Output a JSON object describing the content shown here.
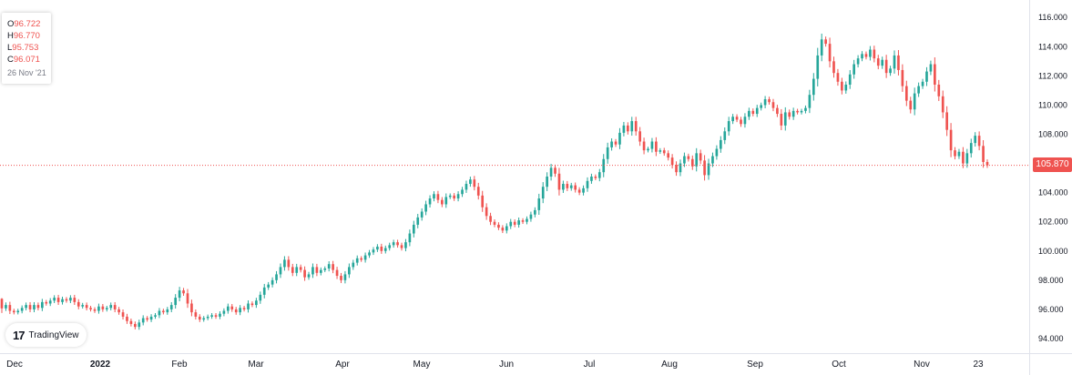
{
  "app": {
    "brand": "TradingView",
    "brand_icon": "tradingview-logo-icon"
  },
  "ohlc": {
    "open_key": "O",
    "open": "96.722",
    "high_key": "H",
    "high": "96.770",
    "low_key": "L",
    "low": "95.753",
    "close_key": "C",
    "close": "96.071",
    "date": "26 Nov '21"
  },
  "current_price": "105.870",
  "colors": {
    "up": "#26a69a",
    "down": "#ef5350",
    "price_line": "#ef5350"
  },
  "chart_data": {
    "type": "candlestick",
    "title": "",
    "xlabel": "",
    "ylabel": "",
    "ylim": [
      93.0,
      117.2
    ],
    "y_ticks": [
      "94.000",
      "96.000",
      "98.000",
      "100.000",
      "102.000",
      "104.000",
      "106.000",
      "108.000",
      "110.000",
      "112.000",
      "114.000",
      "116.000"
    ],
    "x_ticks": [
      {
        "label": "Dec",
        "bold": false
      },
      {
        "label": "2022",
        "bold": true
      },
      {
        "label": "Feb",
        "bold": false
      },
      {
        "label": "Mar",
        "bold": false
      },
      {
        "label": "Apr",
        "bold": false
      },
      {
        "label": "May",
        "bold": false
      },
      {
        "label": "Jun",
        "bold": false
      },
      {
        "label": "Jul",
        "bold": false
      },
      {
        "label": "Aug",
        "bold": false
      },
      {
        "label": "Sep",
        "bold": false
      },
      {
        "label": "Oct",
        "bold": false
      },
      {
        "label": "Nov",
        "bold": false
      },
      {
        "label": "23",
        "bold": false
      }
    ],
    "price_line": 105.87,
    "grid": false,
    "series": [
      {
        "close": [
          96.07,
          96.3,
          95.9,
          95.8,
          95.9,
          96.1,
          96.3,
          96.0,
          96.3,
          96.1,
          96.5,
          96.4,
          96.6,
          96.8,
          96.5,
          96.7,
          96.6,
          96.8,
          96.5,
          96.2,
          96.3,
          96.1,
          96.0,
          95.9,
          96.2,
          96.0,
          96.1,
          96.3,
          96.0,
          95.8,
          95.5,
          95.2,
          95.0,
          94.8,
          95.1,
          95.4,
          95.3,
          95.5,
          95.6,
          95.9,
          95.8,
          96.0,
          96.3,
          96.8,
          97.3,
          97.1,
          96.4,
          95.8,
          95.5,
          95.3,
          95.4,
          95.5,
          95.6,
          95.5,
          95.7,
          95.9,
          96.2,
          96.0,
          95.8,
          96.1,
          96.0,
          96.4,
          96.3,
          96.6,
          97.0,
          97.5,
          97.7,
          98.0,
          98.4,
          98.9,
          99.4,
          98.9,
          98.5,
          98.9,
          98.7,
          98.2,
          98.4,
          98.9,
          98.5,
          98.7,
          98.8,
          99.1,
          98.7,
          98.3,
          98.0,
          98.4,
          98.9,
          99.2,
          99.5,
          99.4,
          99.7,
          99.9,
          100.1,
          100.3,
          100.0,
          100.2,
          100.4,
          100.6,
          100.4,
          100.2,
          100.6,
          101.2,
          101.8,
          102.3,
          102.7,
          103.2,
          103.6,
          103.9,
          103.5,
          103.2,
          103.7,
          103.8,
          103.6,
          103.9,
          104.2,
          104.6,
          104.9,
          104.4,
          103.8,
          103.0,
          102.4,
          102.0,
          101.8,
          101.6,
          101.4,
          101.7,
          102.0,
          101.8,
          102.1,
          102.0,
          102.2,
          102.5,
          102.8,
          103.6,
          104.4,
          105.1,
          105.7,
          105.3,
          104.2,
          104.6,
          104.3,
          104.5,
          104.2,
          104.0,
          104.3,
          104.8,
          105.1,
          105.0,
          105.4,
          106.3,
          107.1,
          107.5,
          107.3,
          108.1,
          108.6,
          108.2,
          108.9,
          108.2,
          107.5,
          106.9,
          107.0,
          107.5,
          106.8,
          106.9,
          106.7,
          106.4,
          105.9,
          105.4,
          106.0,
          106.5,
          106.3,
          105.8,
          106.7,
          106.2,
          105.2,
          106.0,
          106.5,
          107.0,
          107.6,
          108.2,
          108.9,
          109.2,
          109.0,
          108.7,
          109.2,
          109.6,
          109.4,
          109.8,
          110.0,
          110.4,
          110.2,
          109.8,
          109.4,
          108.6,
          109.5,
          109.2,
          109.6,
          109.5,
          109.6,
          109.8,
          110.7,
          111.8,
          113.4,
          114.5,
          114.2,
          113.0,
          112.2,
          111.6,
          111.0,
          111.4,
          112.1,
          112.8,
          113.2,
          113.5,
          113.3,
          113.8,
          113.2,
          112.7,
          113.1,
          112.2,
          112.5,
          113.4,
          112.4,
          111.3,
          110.3,
          109.7,
          110.8,
          111.3,
          111.6,
          112.3,
          112.8,
          111.4,
          110.6,
          109.5,
          108.3,
          106.9,
          106.5,
          106.8,
          106.0,
          106.7,
          107.4,
          107.9,
          107.2,
          106.1,
          105.87
        ]
      }
    ]
  }
}
